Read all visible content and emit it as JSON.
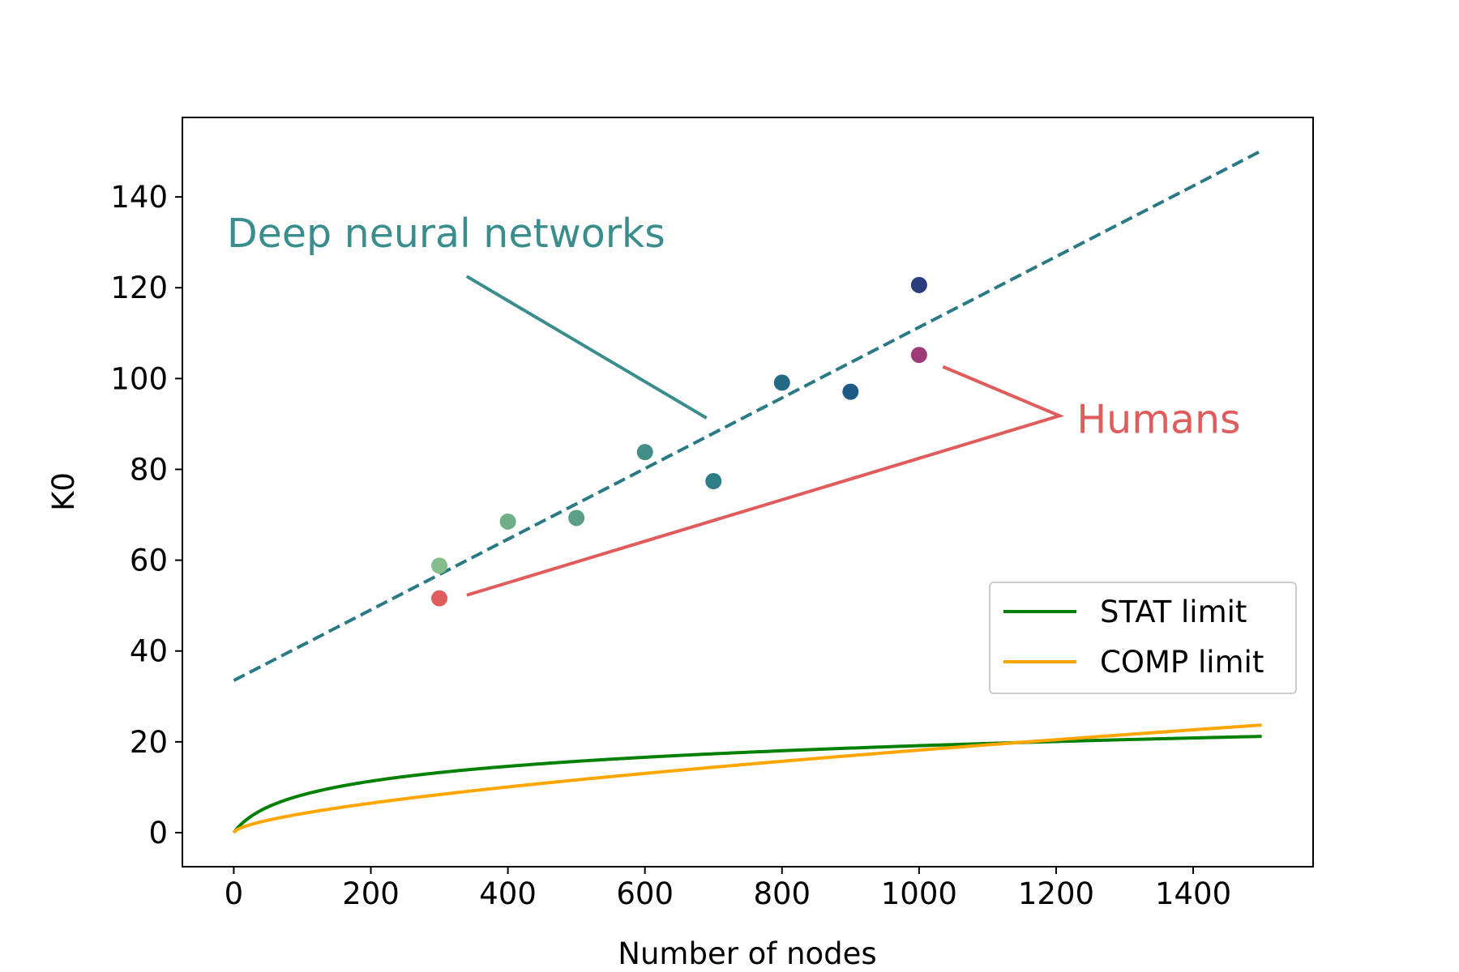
{
  "chart_data": {
    "type": "scatter",
    "title": "",
    "xlabel": "Number of nodes",
    "ylabel": "K0",
    "xlim": [
      -75,
      1575
    ],
    "ylim": [
      -7.5,
      157.5
    ],
    "xticks": [
      0,
      200,
      400,
      600,
      800,
      1000,
      1200,
      1400
    ],
    "yticks": [
      0,
      20,
      40,
      60,
      80,
      100,
      120,
      140
    ],
    "grid": false,
    "legend_position": "center-right",
    "scatter_points": [
      {
        "x": 300,
        "y": 58.8,
        "color": "#86bd8c"
      },
      {
        "x": 400,
        "y": 68.5,
        "color": "#6fae88"
      },
      {
        "x": 500,
        "y": 69.3,
        "color": "#5b9e88"
      },
      {
        "x": 600,
        "y": 83.8,
        "color": "#448e88"
      },
      {
        "x": 700,
        "y": 77.4,
        "color": "#2f7d86"
      },
      {
        "x": 800,
        "y": 99.1,
        "color": "#236b85"
      },
      {
        "x": 900,
        "y": 97.1,
        "color": "#1f5a84"
      },
      {
        "x": 1000,
        "y": 120.6,
        "color": "#2a3e7c"
      },
      {
        "x": 300,
        "y": 51.6,
        "color": "#e05b5b"
      },
      {
        "x": 1000,
        "y": 105.2,
        "color": "#9e3a78"
      }
    ],
    "fit_line": {
      "x": [
        0,
        1500
      ],
      "y": [
        33.5,
        150.2
      ],
      "color": "#2a7a86",
      "style": "dashed"
    },
    "series": [
      {
        "name": "STAT limit",
        "color": "#008000",
        "x_max": 1500,
        "y_at_max": 21.2,
        "shape": "logarithmic"
      },
      {
        "name": "COMP limit",
        "color": "#ffa500",
        "x_max": 1500,
        "y_at_max": 23.7,
        "shape": "power"
      }
    ],
    "annotations": [
      {
        "text": "Deep neural networks",
        "color": "#3a8d8d",
        "text_at": [
          -10,
          129
        ],
        "pointer": [
          [
            340,
            122.5
          ],
          [
            690,
            91.3
          ]
        ]
      },
      {
        "text": "Humans",
        "color": "#e05b5b",
        "text_at": [
          1230,
          88
        ],
        "pointer": [
          [
            340,
            52.3
          ],
          [
            1205,
            91.8
          ],
          [
            1035,
            102.6
          ]
        ]
      }
    ]
  }
}
